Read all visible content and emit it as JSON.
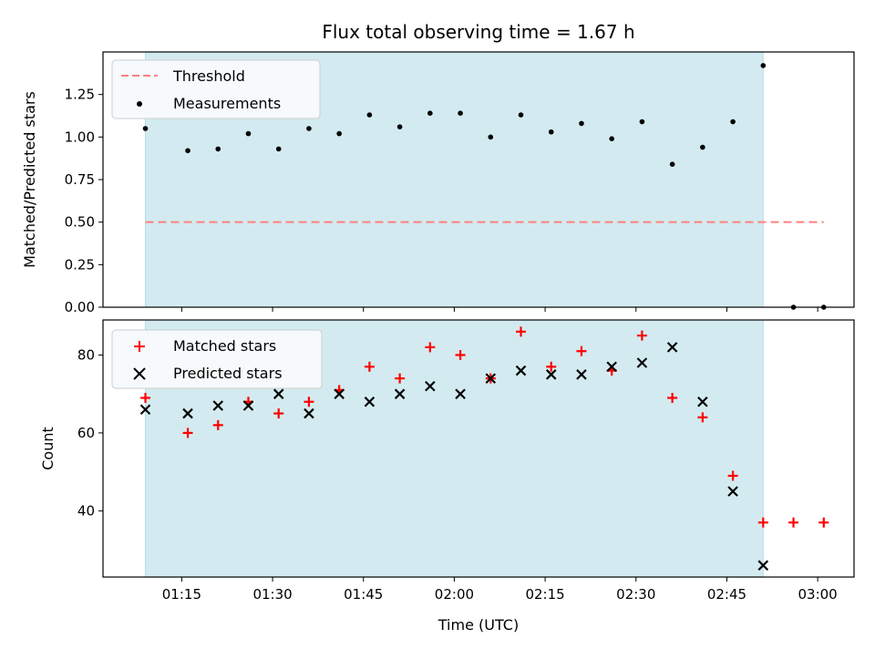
{
  "chart_data": [
    {
      "type": "scatter",
      "title": "Flux total observing time = 1.67 h",
      "xlabel": "",
      "ylabel": "Matched/Predicted stars",
      "ylim": [
        0,
        1.5
      ],
      "yticks": [
        "0.00",
        "0.25",
        "0.50",
        "0.75",
        "1.00",
        "1.25"
      ],
      "shaded_interval": [
        "01:09",
        "02:51"
      ],
      "threshold": {
        "name": "Threshold",
        "value": 0.5,
        "x_range": [
          "01:09",
          "03:01"
        ],
        "color": "#ff7f7f"
      },
      "series": [
        {
          "name": "Measurements",
          "marker": "dot",
          "color": "#000000",
          "x": [
            "01:09",
            "01:16",
            "01:21",
            "01:26",
            "01:31",
            "01:36",
            "01:41",
            "01:46",
            "01:51",
            "01:56",
            "02:01",
            "02:06",
            "02:11",
            "02:16",
            "02:21",
            "02:26",
            "02:31",
            "02:36",
            "02:41",
            "02:46",
            "02:51",
            "02:56",
            "03:01"
          ],
          "y": [
            1.05,
            0.92,
            0.93,
            1.02,
            0.93,
            1.05,
            1.02,
            1.13,
            1.06,
            1.14,
            1.14,
            1.0,
            1.13,
            1.03,
            1.08,
            0.99,
            1.09,
            0.84,
            0.94,
            1.09,
            1.42,
            0.0,
            0.0
          ]
        }
      ]
    },
    {
      "type": "scatter",
      "title": "",
      "xlabel": "Time (UTC)",
      "ylabel": "Count",
      "ylim": [
        23,
        89
      ],
      "yticks": [
        "40",
        "60",
        "80"
      ],
      "xticks": [
        "01:15",
        "01:30",
        "01:45",
        "02:00",
        "02:15",
        "02:30",
        "02:45",
        "03:00"
      ],
      "shaded_interval": [
        "01:09",
        "02:51"
      ],
      "series": [
        {
          "name": "Matched stars",
          "marker": "plus",
          "color": "#ff0000",
          "x": [
            "01:09",
            "01:16",
            "01:21",
            "01:26",
            "01:31",
            "01:36",
            "01:41",
            "01:46",
            "01:51",
            "01:56",
            "02:01",
            "02:06",
            "02:11",
            "02:16",
            "02:21",
            "02:26",
            "02:31",
            "02:36",
            "02:41",
            "02:46",
            "02:51",
            "02:56",
            "03:01"
          ],
          "y": [
            69,
            60,
            62,
            68,
            65,
            68,
            71,
            77,
            74,
            82,
            80,
            74,
            86,
            77,
            81,
            76,
            85,
            69,
            64,
            49,
            37,
            37,
            37
          ]
        },
        {
          "name": "Predicted stars",
          "marker": "x",
          "color": "#000000",
          "x": [
            "01:09",
            "01:16",
            "01:21",
            "01:26",
            "01:31",
            "01:36",
            "01:41",
            "01:46",
            "01:51",
            "01:56",
            "02:01",
            "02:06",
            "02:11",
            "02:16",
            "02:21",
            "02:26",
            "02:31",
            "02:36",
            "02:41",
            "02:46",
            "02:51"
          ],
          "y": [
            66,
            65,
            67,
            67,
            70,
            65,
            70,
            68,
            70,
            72,
            70,
            74,
            76,
            75,
            75,
            77,
            78,
            82,
            68,
            45,
            26
          ]
        }
      ]
    }
  ],
  "colors": {
    "shade": "#d3ebf0",
    "shade_edge": "#b8dde6",
    "legend_bg": "#f7fafc"
  }
}
